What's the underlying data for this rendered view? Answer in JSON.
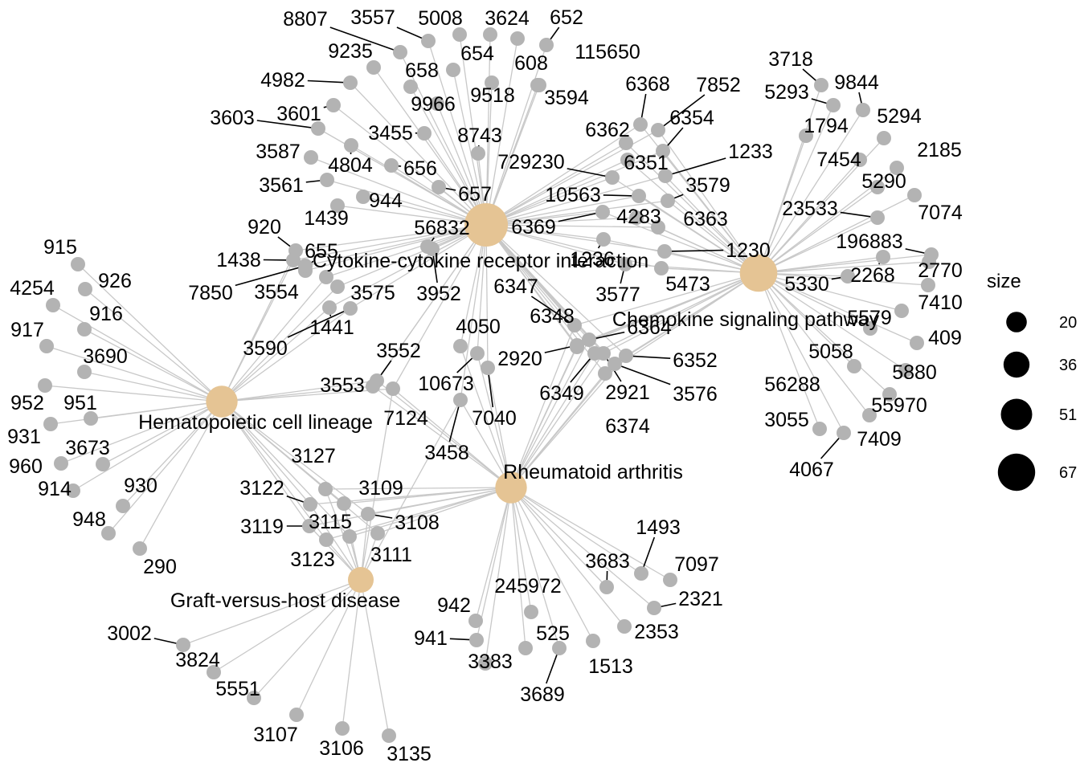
{
  "colors": {
    "pathway": "#E5C494",
    "gene": "#B3B3B3",
    "edge": "#C8C8C8",
    "legend_dot": "#000000"
  },
  "pathways": [
    {
      "id": "ccr",
      "label": "Cytokine-cytokine receptor interaction",
      "size": 67
    },
    {
      "id": "csp",
      "label": "Chemokine signaling pathway",
      "size": 51
    },
    {
      "id": "hcl",
      "label": "Hematopoietic cell lineage",
      "size": 36
    },
    {
      "id": "ra",
      "label": "Rheumatoid arthritis",
      "size": 36
    },
    {
      "id": "gvh",
      "label": "Graft-versus-host disease",
      "size": 20
    }
  ],
  "genes": [
    {
      "id": "8807",
      "links": [
        "ccr"
      ]
    },
    {
      "id": "3557",
      "links": [
        "ccr"
      ]
    },
    {
      "id": "5008",
      "links": [
        "ccr"
      ]
    },
    {
      "id": "3624",
      "links": [
        "ccr"
      ]
    },
    {
      "id": "652",
      "links": [
        "ccr"
      ]
    },
    {
      "id": "9235",
      "links": [
        "ccr"
      ]
    },
    {
      "id": "658",
      "links": [
        "ccr"
      ]
    },
    {
      "id": "654",
      "links": [
        "ccr"
      ]
    },
    {
      "id": "608",
      "links": [
        "ccr"
      ]
    },
    {
      "id": "115650",
      "links": [
        "ccr"
      ]
    },
    {
      "id": "4982",
      "links": [
        "ccr"
      ]
    },
    {
      "id": "9966",
      "links": [
        "ccr"
      ]
    },
    {
      "id": "9518",
      "links": [
        "ccr"
      ]
    },
    {
      "id": "3594",
      "links": [
        "ccr"
      ]
    },
    {
      "id": "3603",
      "links": [
        "ccr"
      ]
    },
    {
      "id": "3601",
      "links": [
        "ccr"
      ]
    },
    {
      "id": "3455",
      "links": [
        "ccr"
      ]
    },
    {
      "id": "8743",
      "links": [
        "ccr"
      ]
    },
    {
      "id": "3587",
      "links": [
        "ccr"
      ]
    },
    {
      "id": "4804",
      "links": [
        "ccr"
      ]
    },
    {
      "id": "656",
      "links": [
        "ccr"
      ]
    },
    {
      "id": "3561",
      "links": [
        "ccr"
      ]
    },
    {
      "id": "657",
      "links": [
        "ccr"
      ]
    },
    {
      "id": "944",
      "links": [
        "ccr"
      ]
    },
    {
      "id": "1439",
      "links": [
        "ccr"
      ]
    },
    {
      "id": "920",
      "links": [
        "ccr",
        "hcl"
      ]
    },
    {
      "id": "56832",
      "links": [
        "ccr"
      ]
    },
    {
      "id": "655",
      "links": [
        "ccr"
      ]
    },
    {
      "id": "1438",
      "links": [
        "ccr",
        "hcl"
      ]
    },
    {
      "id": "7850",
      "links": [
        "ccr"
      ]
    },
    {
      "id": "3554",
      "links": [
        "ccr",
        "hcl"
      ]
    },
    {
      "id": "3575",
      "links": [
        "ccr",
        "hcl"
      ]
    },
    {
      "id": "3952",
      "links": [
        "ccr"
      ]
    },
    {
      "id": "1441",
      "links": [
        "ccr",
        "hcl"
      ]
    },
    {
      "id": "3590",
      "links": [
        "ccr",
        "hcl"
      ]
    },
    {
      "id": "6368",
      "links": [
        "ccr",
        "csp"
      ]
    },
    {
      "id": "7852",
      "links": [
        "ccr",
        "csp"
      ]
    },
    {
      "id": "6362",
      "links": [
        "ccr",
        "csp"
      ]
    },
    {
      "id": "6354",
      "links": [
        "ccr",
        "csp"
      ]
    },
    {
      "id": "729230",
      "links": [
        "ccr",
        "csp"
      ]
    },
    {
      "id": "6351",
      "links": [
        "ccr",
        "csp"
      ]
    },
    {
      "id": "1233",
      "links": [
        "ccr",
        "csp"
      ]
    },
    {
      "id": "10563",
      "links": [
        "ccr",
        "csp"
      ]
    },
    {
      "id": "3579",
      "links": [
        "ccr",
        "csp"
      ]
    },
    {
      "id": "6369",
      "links": [
        "ccr",
        "csp"
      ]
    },
    {
      "id": "4283",
      "links": [
        "ccr",
        "csp"
      ]
    },
    {
      "id": "6363",
      "links": [
        "ccr",
        "csp"
      ]
    },
    {
      "id": "1236",
      "links": [
        "ccr",
        "csp"
      ]
    },
    {
      "id": "1230",
      "links": [
        "ccr",
        "csp"
      ]
    },
    {
      "id": "3577",
      "links": [
        "ccr",
        "csp"
      ]
    },
    {
      "id": "5473",
      "links": [
        "ccr",
        "csp"
      ]
    },
    {
      "id": "6347",
      "links": [
        "ccr",
        "csp",
        "ra"
      ]
    },
    {
      "id": "6348",
      "links": [
        "ccr",
        "csp",
        "ra"
      ]
    },
    {
      "id": "6364",
      "links": [
        "ccr",
        "csp",
        "ra"
      ]
    },
    {
      "id": "6352",
      "links": [
        "ccr",
        "csp",
        "ra"
      ]
    },
    {
      "id": "2920",
      "links": [
        "ccr",
        "csp",
        "ra"
      ]
    },
    {
      "id": "6349",
      "links": [
        "ccr",
        "csp",
        "ra"
      ]
    },
    {
      "id": "2921",
      "links": [
        "ccr",
        "csp",
        "ra"
      ]
    },
    {
      "id": "3576",
      "links": [
        "ccr",
        "csp",
        "ra"
      ]
    },
    {
      "id": "6374",
      "links": [
        "ccr",
        "csp",
        "ra"
      ]
    },
    {
      "id": "4050",
      "links": [
        "ccr",
        "ra"
      ]
    },
    {
      "id": "10673",
      "links": [
        "ccr",
        "ra"
      ]
    },
    {
      "id": "7040",
      "links": [
        "ccr",
        "ra"
      ]
    },
    {
      "id": "3552",
      "links": [
        "ccr",
        "hcl",
        "ra"
      ]
    },
    {
      "id": "3553",
      "links": [
        "ccr",
        "hcl",
        "ra"
      ]
    },
    {
      "id": "7124",
      "links": [
        "ccr",
        "hcl",
        "ra",
        "gvh"
      ]
    },
    {
      "id": "3458",
      "links": [
        "ccr",
        "ra",
        "gvh"
      ]
    },
    {
      "id": "3718",
      "links": [
        "csp"
      ]
    },
    {
      "id": "9844",
      "links": [
        "csp"
      ]
    },
    {
      "id": "5293",
      "links": [
        "csp"
      ]
    },
    {
      "id": "1794",
      "links": [
        "csp"
      ]
    },
    {
      "id": "5294",
      "links": [
        "csp"
      ]
    },
    {
      "id": "2185",
      "links": [
        "csp"
      ]
    },
    {
      "id": "7454",
      "links": [
        "csp"
      ]
    },
    {
      "id": "5290",
      "links": [
        "csp"
      ]
    },
    {
      "id": "23533",
      "links": [
        "csp"
      ]
    },
    {
      "id": "7074",
      "links": [
        "csp"
      ]
    },
    {
      "id": "196883",
      "links": [
        "csp"
      ]
    },
    {
      "id": "2770",
      "links": [
        "csp"
      ]
    },
    {
      "id": "2268",
      "links": [
        "csp"
      ]
    },
    {
      "id": "5330",
      "links": [
        "csp"
      ]
    },
    {
      "id": "7410",
      "links": [
        "csp"
      ]
    },
    {
      "id": "5579",
      "links": [
        "csp"
      ]
    },
    {
      "id": "409",
      "links": [
        "csp"
      ]
    },
    {
      "id": "5058",
      "links": [
        "csp"
      ]
    },
    {
      "id": "5880",
      "links": [
        "csp"
      ]
    },
    {
      "id": "56288",
      "links": [
        "csp"
      ]
    },
    {
      "id": "55970",
      "links": [
        "csp"
      ]
    },
    {
      "id": "3055",
      "links": [
        "csp"
      ]
    },
    {
      "id": "7409",
      "links": [
        "csp"
      ]
    },
    {
      "id": "4067",
      "links": [
        "csp"
      ]
    },
    {
      "id": "915",
      "links": [
        "hcl"
      ]
    },
    {
      "id": "926",
      "links": [
        "hcl"
      ]
    },
    {
      "id": "4254",
      "links": [
        "hcl"
      ]
    },
    {
      "id": "916",
      "links": [
        "hcl"
      ]
    },
    {
      "id": "917",
      "links": [
        "hcl"
      ]
    },
    {
      "id": "3690",
      "links": [
        "hcl"
      ]
    },
    {
      "id": "952",
      "links": [
        "hcl"
      ]
    },
    {
      "id": "951",
      "links": [
        "hcl"
      ]
    },
    {
      "id": "931",
      "links": [
        "hcl"
      ]
    },
    {
      "id": "3673",
      "links": [
        "hcl"
      ]
    },
    {
      "id": "960",
      "links": [
        "hcl"
      ]
    },
    {
      "id": "930",
      "links": [
        "hcl"
      ]
    },
    {
      "id": "914",
      "links": [
        "hcl"
      ]
    },
    {
      "id": "948",
      "links": [
        "hcl"
      ]
    },
    {
      "id": "290",
      "links": [
        "hcl"
      ]
    },
    {
      "id": "3127",
      "links": [
        "hcl",
        "ra",
        "gvh"
      ]
    },
    {
      "id": "3122",
      "links": [
        "hcl",
        "ra",
        "gvh"
      ]
    },
    {
      "id": "3109",
      "links": [
        "hcl",
        "ra",
        "gvh"
      ]
    },
    {
      "id": "3119",
      "links": [
        "hcl",
        "ra",
        "gvh"
      ]
    },
    {
      "id": "3115",
      "links": [
        "hcl",
        "ra",
        "gvh"
      ]
    },
    {
      "id": "3108",
      "links": [
        "hcl",
        "ra",
        "gvh"
      ]
    },
    {
      "id": "3123",
      "links": [
        "hcl",
        "ra",
        "gvh"
      ]
    },
    {
      "id": "3111",
      "links": [
        "hcl",
        "ra",
        "gvh"
      ]
    },
    {
      "id": "1493",
      "links": [
        "ra"
      ]
    },
    {
      "id": "3683",
      "links": [
        "ra"
      ]
    },
    {
      "id": "7097",
      "links": [
        "ra"
      ]
    },
    {
      "id": "245972",
      "links": [
        "ra"
      ]
    },
    {
      "id": "2321",
      "links": [
        "ra"
      ]
    },
    {
      "id": "942",
      "links": [
        "ra"
      ]
    },
    {
      "id": "2353",
      "links": [
        "ra"
      ]
    },
    {
      "id": "525",
      "links": [
        "ra"
      ]
    },
    {
      "id": "941",
      "links": [
        "ra"
      ]
    },
    {
      "id": "1513",
      "links": [
        "ra"
      ]
    },
    {
      "id": "3383",
      "links": [
        "ra"
      ]
    },
    {
      "id": "3689",
      "links": [
        "ra"
      ]
    },
    {
      "id": "3002",
      "links": [
        "gvh"
      ]
    },
    {
      "id": "3824",
      "links": [
        "gvh"
      ]
    },
    {
      "id": "5551",
      "links": [
        "gvh"
      ]
    },
    {
      "id": "3107",
      "links": [
        "gvh"
      ]
    },
    {
      "id": "3106",
      "links": [
        "gvh"
      ]
    },
    {
      "id": "3135",
      "links": [
        "gvh"
      ]
    }
  ],
  "legend": {
    "title": "size",
    "items": [
      {
        "label": "20",
        "value": 20
      },
      {
        "label": "36",
        "value": 36
      },
      {
        "label": "51",
        "value": 51
      },
      {
        "label": "67",
        "value": 67
      }
    ]
  }
}
